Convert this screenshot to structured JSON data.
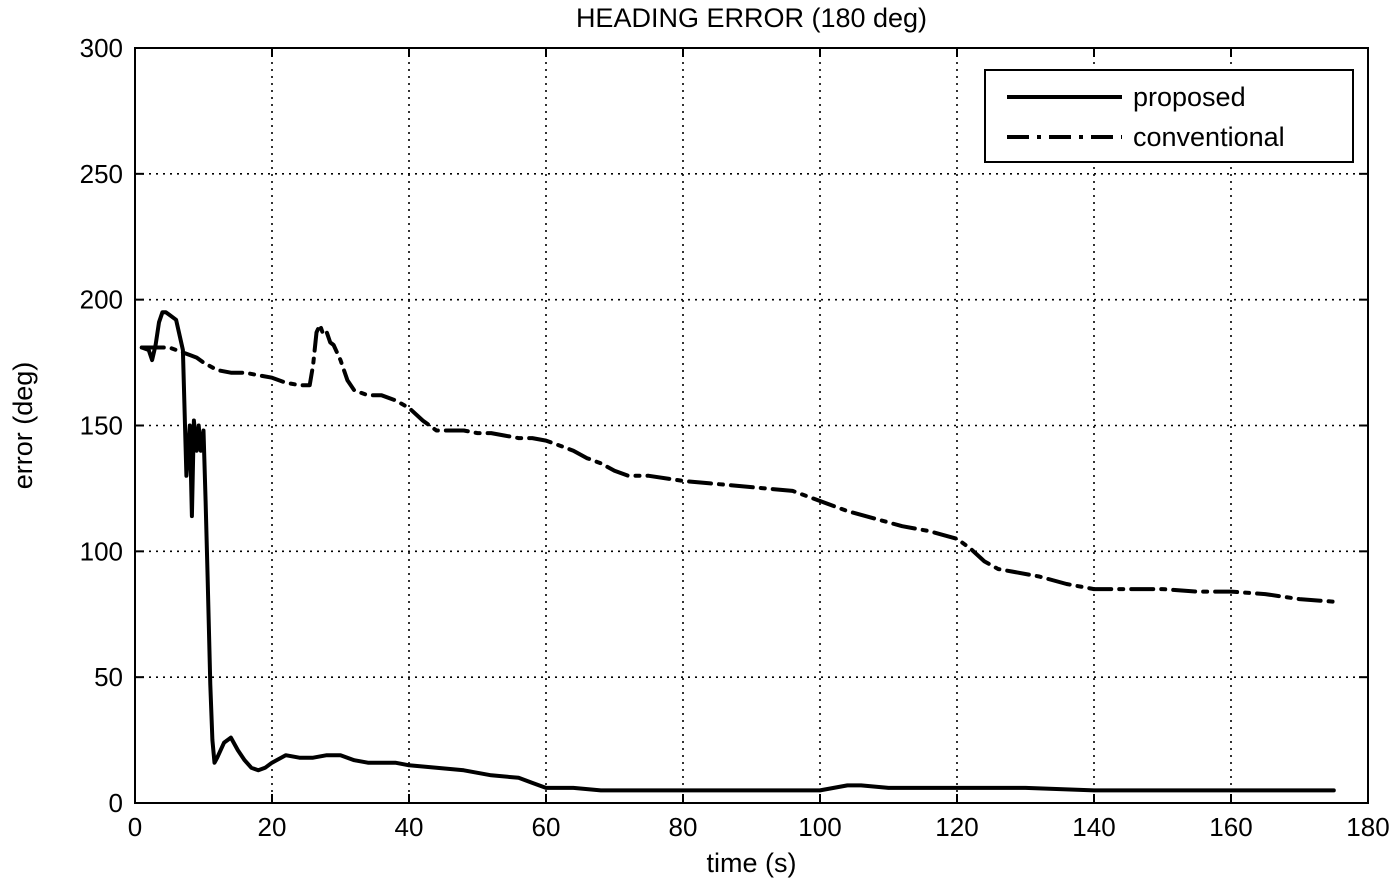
{
  "chart_data": {
    "type": "line",
    "title": "HEADING ERROR (180 deg)",
    "xlabel": "time (s)",
    "ylabel": "error (deg)",
    "xlim": [
      0,
      180
    ],
    "ylim": [
      0,
      300
    ],
    "x_ticks": [
      0,
      20,
      40,
      60,
      80,
      100,
      120,
      140,
      160,
      180
    ],
    "y_ticks": [
      0,
      50,
      100,
      150,
      200,
      250,
      300
    ],
    "grid": true,
    "legend_position": "top-right",
    "series": [
      {
        "name": "proposed",
        "line_style": "solid",
        "color": "#000000",
        "x": [
          1,
          2,
          2.5,
          3,
          3.5,
          4,
          4.5,
          5,
          6,
          7,
          7.5,
          8,
          8.3,
          8.6,
          9,
          9.3,
          9.6,
          10,
          10.3,
          10.6,
          11,
          11.3,
          11.6,
          12,
          13,
          14,
          15,
          16,
          17,
          18,
          19,
          20,
          22,
          24,
          26,
          28,
          30,
          32,
          34,
          36,
          38,
          40,
          44,
          48,
          52,
          56,
          58,
          60,
          64,
          68,
          72,
          76,
          80,
          84,
          88,
          92,
          96,
          100,
          102,
          104,
          106,
          110,
          120,
          130,
          140,
          150,
          160,
          165,
          170,
          175
        ],
        "y": [
          181,
          180,
          176,
          182,
          191,
          195,
          195,
          194,
          192,
          180,
          130,
          150,
          114,
          152,
          140,
          150,
          140,
          148,
          120,
          90,
          47,
          25,
          16,
          18,
          24,
          26,
          21,
          17,
          14,
          13,
          14,
          16,
          19,
          18,
          18,
          19,
          19,
          17,
          16,
          16,
          16,
          15,
          14,
          13,
          11,
          10,
          8,
          6,
          6,
          5,
          5,
          5,
          5,
          5,
          5,
          5,
          5,
          5,
          6,
          7,
          7,
          6,
          6,
          6,
          5,
          5,
          5,
          5,
          5,
          5
        ]
      },
      {
        "name": "conventional",
        "line_style": "dash-dot",
        "color": "#000000",
        "x": [
          1,
          2,
          3,
          4,
          5,
          6,
          7,
          8,
          9,
          10,
          12,
          14,
          16,
          18,
          20,
          22,
          24,
          25.5,
          26,
          26.5,
          27,
          27.5,
          28,
          28.5,
          29,
          30,
          31,
          32,
          34,
          36,
          38,
          40,
          42,
          44,
          46,
          48,
          50,
          52,
          54,
          56,
          58,
          60,
          62,
          64,
          66,
          68,
          70,
          72,
          75,
          80,
          84,
          88,
          92,
          96,
          100,
          104,
          108,
          112,
          116,
          120,
          122,
          124,
          126,
          128,
          132,
          136,
          140,
          145,
          150,
          155,
          160,
          165,
          170,
          175
        ],
        "y": [
          181,
          181,
          181,
          181,
          181,
          180,
          179,
          178,
          177,
          175,
          172,
          171,
          171,
          170,
          169,
          167,
          166,
          166,
          174,
          187,
          190,
          186,
          187,
          183,
          182,
          176,
          168,
          164,
          162,
          162,
          160,
          157,
          152,
          148,
          148,
          148,
          147,
          147,
          146,
          145,
          145,
          144,
          142,
          140,
          137,
          135,
          132,
          130,
          130,
          128,
          127,
          126,
          125,
          124,
          120,
          116,
          113,
          110,
          108,
          105,
          101,
          96,
          93,
          92,
          90,
          87,
          85,
          85,
          85,
          84,
          84,
          83,
          81,
          80
        ]
      }
    ]
  }
}
